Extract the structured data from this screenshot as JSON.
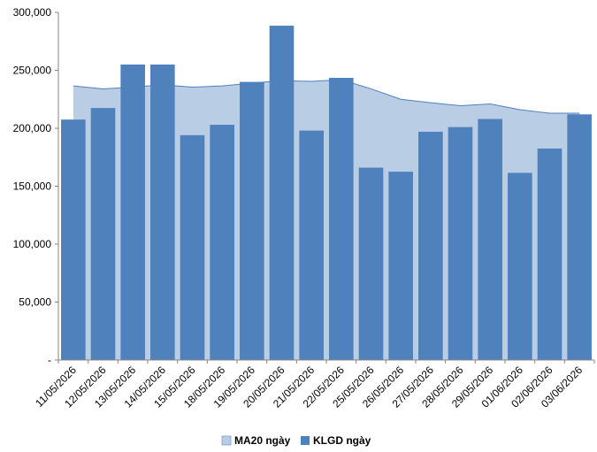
{
  "chart_data": {
    "type": "bar",
    "categories": [
      "11/05/2026",
      "12/05/2026",
      "13/05/2026",
      "14/05/2026",
      "15/05/2026",
      "18/05/2026",
      "19/05/2026",
      "20/05/2026",
      "21/05/2026",
      "22/05/2026",
      "25/05/2026",
      "26/05/2026",
      "27/05/2026",
      "28/05/2026",
      "29/05/2026",
      "01/06/2026",
      "02/06/2026",
      "03/06/2026"
    ],
    "series": [
      {
        "name": "MA20 ngày",
        "kind": "area",
        "color": "#b9cde5",
        "line_color": "#4f81bd",
        "values": [
          236500,
          234000,
          235500,
          237500,
          235500,
          236500,
          239000,
          241000,
          240500,
          242000,
          234000,
          225000,
          222000,
          219500,
          221000,
          216000,
          213000,
          213000
        ]
      },
      {
        "name": "KLGD ngày",
        "kind": "bar",
        "color": "#4f81bd",
        "values": [
          207500,
          217500,
          255000,
          255000,
          194000,
          203000,
          240000,
          288500,
          198000,
          243500,
          166000,
          162500,
          197000,
          201000,
          208000,
          161500,
          182500,
          212000
        ]
      }
    ],
    "y_ticks": [
      "-",
      "50,000",
      "100,000",
      "150,000",
      "200,000",
      "250,000",
      "300,000"
    ],
    "ylim": [
      0,
      300000
    ],
    "grid": false,
    "legend_position": "bottom"
  }
}
